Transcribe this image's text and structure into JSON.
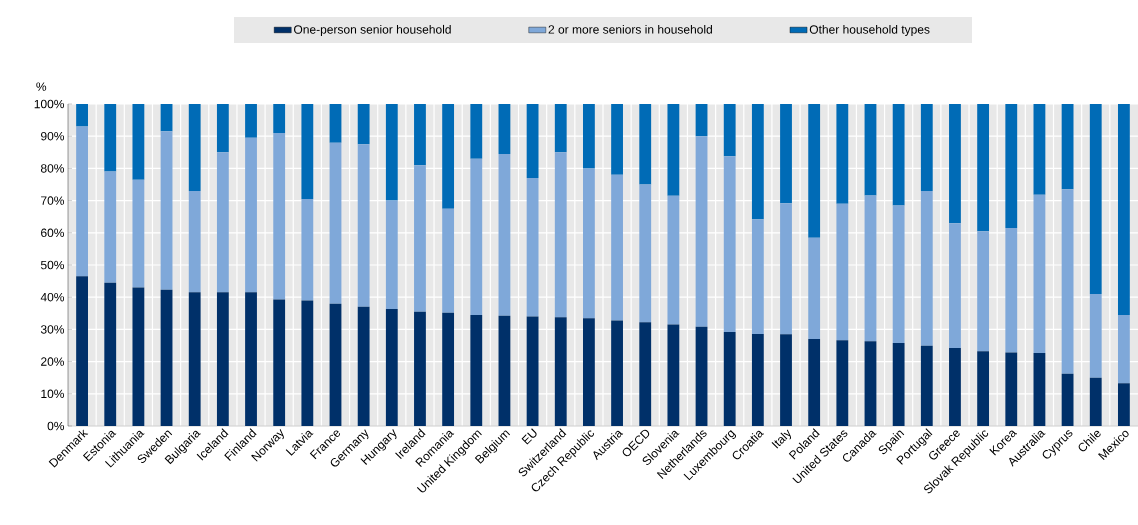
{
  "chart_data": {
    "type": "bar",
    "stacked": true,
    "ylabel": "%",
    "categories": [
      "Denmark",
      "Estonia",
      "Lithuania",
      "Sweden",
      "Bulgaria",
      "Iceland",
      "Finland",
      "Norway",
      "Latvia",
      "France",
      "Germany",
      "Hungary",
      "Ireland",
      "Romania",
      "United Kingdom",
      "Belgium",
      "EU",
      "Switzerland",
      "Czech Republic",
      "Austria",
      "OECD",
      "Slovenia",
      "Netherlands",
      "Luxembourg",
      "Croatia",
      "Italy",
      "Poland",
      "United States",
      "Canada",
      "Spain",
      "Portugal",
      "Greece",
      "Slovak Republic",
      "Korea",
      "Australia",
      "Cyprus",
      "Chile",
      "Mexico"
    ],
    "series": [
      {
        "name": "One-person senior household",
        "color": "#003069",
        "values": [
          46.5,
          44.5,
          43,
          42.3,
          41.5,
          41.5,
          41.5,
          39.3,
          39,
          38,
          37,
          36.3,
          35.5,
          35.2,
          34.5,
          34.2,
          34,
          33.8,
          33.5,
          32.8,
          32.2,
          31.5,
          30.8,
          29.2,
          28.6,
          28.5,
          27,
          26.6,
          26.3,
          25.8,
          24.9,
          24.2,
          23.2,
          22.8,
          22.7,
          16.2,
          15,
          13.3
        ]
      },
      {
        "name": "2 or more seniors in household",
        "color": "#7fa8d9",
        "values": [
          46.5,
          34.5,
          33.5,
          49.2,
          31.5,
          43.5,
          48,
          51.7,
          31.5,
          50,
          50.5,
          33.7,
          45.5,
          32.3,
          48.5,
          50.3,
          43,
          51.2,
          46.5,
          45.2,
          42.8,
          40,
          59.2,
          54.6,
          35.6,
          40.7,
          31.5,
          42.4,
          45.3,
          42.7,
          48.1,
          38.8,
          37.3,
          38.7,
          49.1,
          57.3,
          26,
          21.2
        ]
      },
      {
        "name": "Other household types",
        "color": "#006bb6",
        "values": [
          7,
          21,
          23.5,
          8.5,
          27,
          15,
          10.5,
          9,
          29.5,
          12,
          12.5,
          30,
          19,
          32.5,
          17,
          15.5,
          23,
          15,
          20,
          22,
          25,
          28.5,
          10,
          16.2,
          35.8,
          30.8,
          41.5,
          31,
          28.4,
          31.5,
          27,
          37,
          39.5,
          38.5,
          28.2,
          26.5,
          59,
          65.5
        ]
      }
    ],
    "ylim": [
      0,
      100
    ],
    "yticks": [
      {
        "value": 0,
        "label": "0%"
      },
      {
        "value": 10,
        "label": "10%"
      },
      {
        "value": 20,
        "label": "20%"
      },
      {
        "value": 30,
        "label": "30%"
      },
      {
        "value": 40,
        "label": "40%"
      },
      {
        "value": 50,
        "label": "50%"
      },
      {
        "value": 60,
        "label": "60%"
      },
      {
        "value": 70,
        "label": "70%"
      },
      {
        "value": 80,
        "label": "80%"
      },
      {
        "value": 90,
        "label": "90%"
      },
      {
        "value": 100,
        "label": "100%"
      }
    ],
    "grid": true,
    "legend": "top"
  }
}
